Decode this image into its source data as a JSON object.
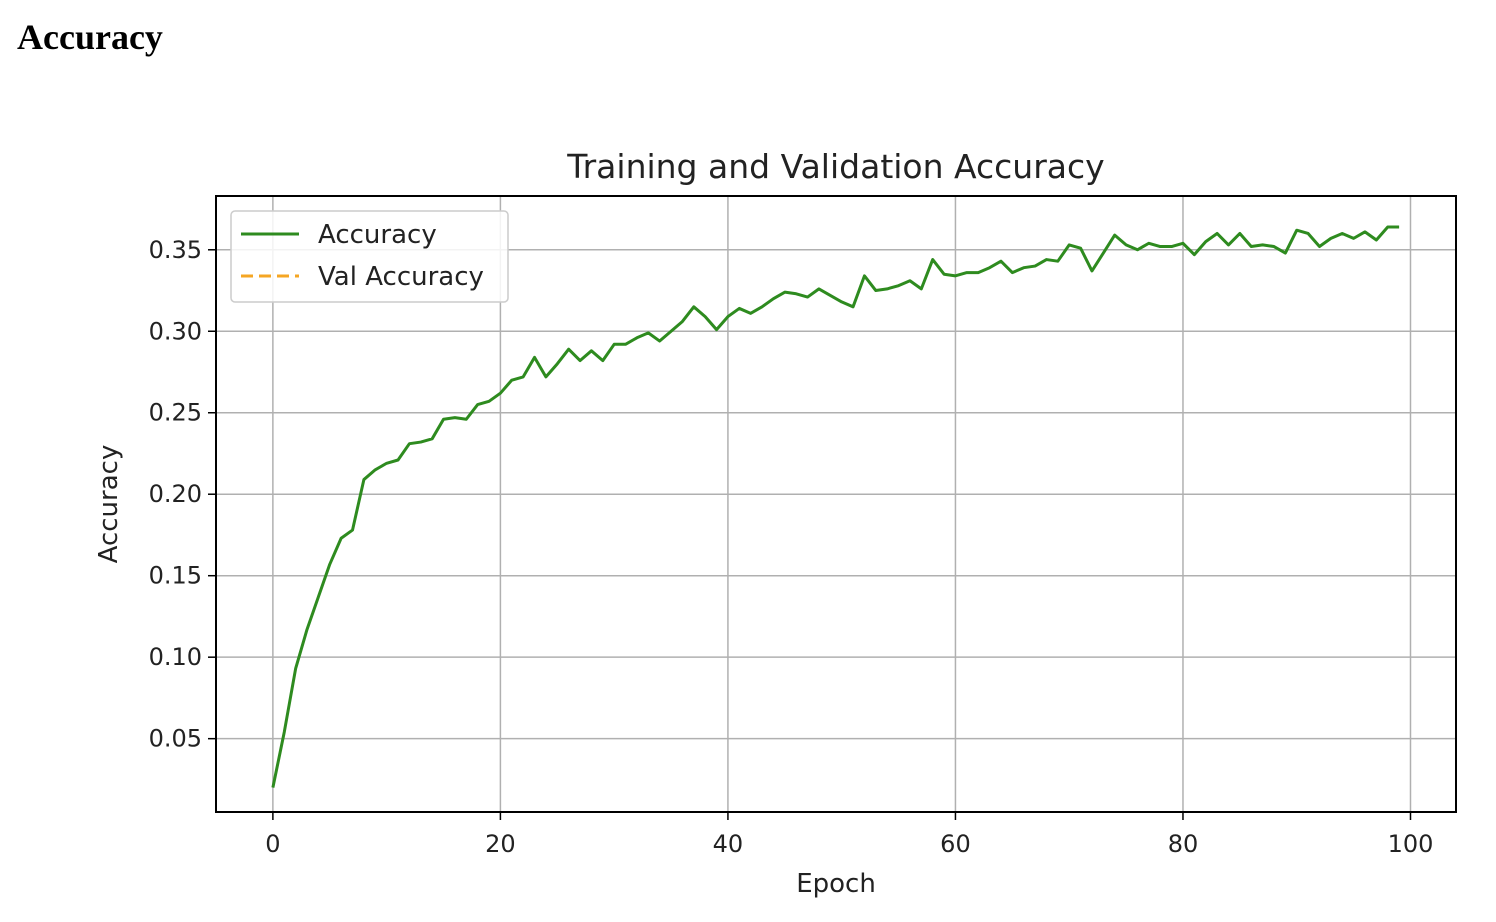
{
  "page": {
    "heading": "Accuracy"
  },
  "colors": {
    "accuracy": "#2e8b1f",
    "val_accuracy": "#f5a623",
    "grid": "#b0b0b0",
    "frame": "#000000"
  },
  "chart_data": {
    "type": "line",
    "title": "Training and Validation Accuracy",
    "xlabel": "Epoch",
    "ylabel": "Accuracy",
    "xlim": [
      -5,
      104
    ],
    "ylim": [
      0.005,
      0.383
    ],
    "xticks": [
      0,
      20,
      40,
      60,
      80,
      100
    ],
    "xtick_labels": [
      "0",
      "20",
      "40",
      "60",
      "80",
      "100"
    ],
    "yticks": [
      0.05,
      0.1,
      0.15,
      0.2,
      0.25,
      0.3,
      0.35
    ],
    "ytick_labels": [
      "0.05",
      "0.10",
      "0.15",
      "0.20",
      "0.25",
      "0.30",
      "0.35"
    ],
    "grid": true,
    "legend_position": "top-left",
    "series": [
      {
        "name": "Accuracy",
        "style": "solid",
        "values": [
          0.02,
          0.054,
          0.093,
          0.117,
          0.137,
          0.157,
          0.173,
          0.178,
          0.209,
          0.215,
          0.219,
          0.221,
          0.231,
          0.232,
          0.234,
          0.246,
          0.247,
          0.246,
          0.255,
          0.257,
          0.262,
          0.27,
          0.272,
          0.284,
          0.272,
          0.28,
          0.289,
          0.282,
          0.288,
          0.282,
          0.292,
          0.292,
          0.296,
          0.299,
          0.294,
          0.3,
          0.306,
          0.315,
          0.309,
          0.301,
          0.309,
          0.314,
          0.311,
          0.315,
          0.32,
          0.324,
          0.323,
          0.321,
          0.326,
          0.322,
          0.318,
          0.315,
          0.334,
          0.325,
          0.326,
          0.328,
          0.331,
          0.326,
          0.344,
          0.335,
          0.334,
          0.336,
          0.336,
          0.339,
          0.343,
          0.336,
          0.339,
          0.34,
          0.344,
          0.343,
          0.353,
          0.351,
          0.337,
          0.348,
          0.359,
          0.353,
          0.35,
          0.354,
          0.352,
          0.352,
          0.354,
          0.347,
          0.355,
          0.36,
          0.353,
          0.36,
          0.352,
          0.353,
          0.352,
          0.348,
          0.362,
          0.36,
          0.352,
          0.357,
          0.36,
          0.357,
          0.361,
          0.356,
          0.364,
          0.364
        ]
      },
      {
        "name": "Val Accuracy",
        "style": "dashed",
        "values": []
      }
    ]
  }
}
